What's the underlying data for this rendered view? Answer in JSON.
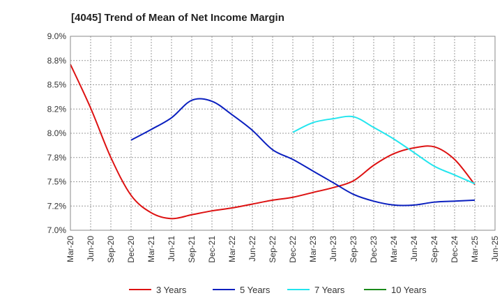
{
  "chart_data": {
    "type": "line",
    "title": "[4045]  Trend of Mean of Net Income Margin",
    "xlabel": "",
    "ylabel": "",
    "x_ticks": [
      "Mar-20",
      "Jun-20",
      "Sep-20",
      "Dec-20",
      "Mar-21",
      "Jun-21",
      "Sep-21",
      "Dec-21",
      "Mar-22",
      "Jun-22",
      "Sep-22",
      "Dec-22",
      "Mar-23",
      "Jun-23",
      "Sep-23",
      "Dec-23",
      "Mar-24",
      "Jun-24",
      "Sep-24",
      "Dec-24",
      "Mar-25",
      "Jun-25"
    ],
    "y_ticks": [
      "7.0%",
      "7.2%",
      "7.5%",
      "7.8%",
      "8.0%",
      "8.2%",
      "8.5%",
      "8.8%",
      "9.0%"
    ],
    "ylim": [
      7.0,
      9.0
    ],
    "grid": true,
    "legend_position": "bottom",
    "series": [
      {
        "name": "3 Years",
        "color": "#dd1111",
        "x": [
          "Mar-20",
          "Jun-20",
          "Sep-20",
          "Dec-20",
          "Mar-21",
          "Jun-21",
          "Sep-21",
          "Dec-21",
          "Mar-22",
          "Jun-22",
          "Sep-22",
          "Dec-22",
          "Mar-23",
          "Jun-23",
          "Sep-23",
          "Dec-23",
          "Mar-24",
          "Jun-24",
          "Sep-24",
          "Dec-24",
          "Mar-25"
        ],
        "values": [
          8.71,
          8.26,
          7.75,
          7.36,
          7.18,
          7.12,
          7.16,
          7.2,
          7.23,
          7.27,
          7.31,
          7.34,
          7.39,
          7.44,
          7.51,
          7.67,
          7.79,
          7.85,
          7.86,
          7.73,
          7.47
        ]
      },
      {
        "name": "5 Years",
        "color": "#0a1fbf",
        "x": [
          "Dec-20",
          "Mar-21",
          "Jun-21",
          "Sep-21",
          "Dec-21",
          "Mar-22",
          "Jun-22",
          "Sep-22",
          "Dec-22",
          "Mar-23",
          "Jun-23",
          "Sep-23",
          "Dec-23",
          "Mar-24",
          "Jun-24",
          "Sep-24",
          "Dec-24",
          "Mar-25"
        ],
        "values": [
          7.93,
          8.04,
          8.16,
          8.34,
          8.33,
          8.19,
          8.03,
          7.83,
          7.73,
          7.61,
          7.49,
          7.37,
          7.3,
          7.26,
          7.26,
          7.29,
          7.3,
          7.31
        ]
      },
      {
        "name": "7 Years",
        "color": "#22e5ee",
        "x": [
          "Dec-22",
          "Mar-23",
          "Jun-23",
          "Sep-23",
          "Dec-23",
          "Mar-24",
          "Jun-24",
          "Sep-24",
          "Dec-24",
          "Mar-25"
        ],
        "values": [
          8.01,
          8.11,
          8.15,
          8.17,
          8.06,
          7.94,
          7.8,
          7.66,
          7.57,
          7.48
        ]
      },
      {
        "name": "10 Years",
        "color": "#1a8a1a",
        "x": [],
        "values": []
      }
    ]
  }
}
